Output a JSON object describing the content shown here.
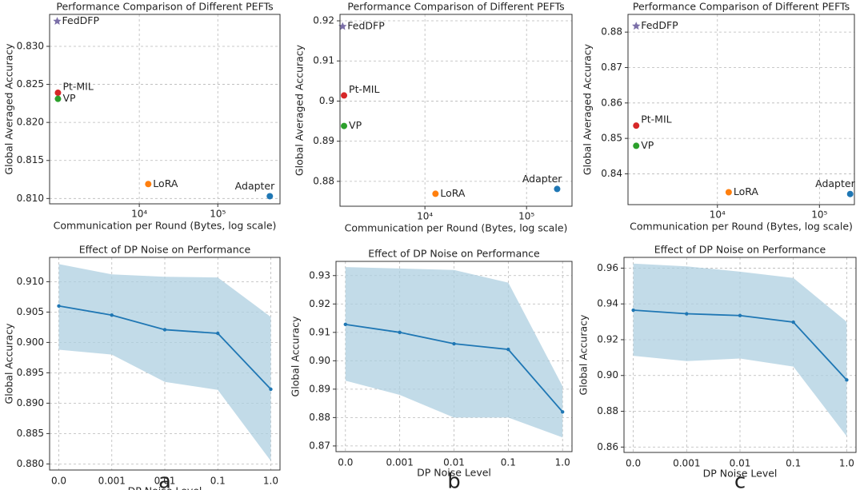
{
  "chart_data": [
    {
      "type": "scatter",
      "title": "Performance Comparison of Different PEFTs",
      "xlabel": "Communication per Round (Bytes, log scale)",
      "ylabel": "Global Averaged Accuracy",
      "categories": [
        "FedDFP",
        "Pt-MIL",
        "VP",
        "LoRA",
        "Adapter"
      ],
      "x": [
        900,
        920,
        920,
        13000,
        460000
      ],
      "values": [
        0.8333,
        0.8239,
        0.8231,
        0.8119,
        0.8103
      ],
      "colors": [
        "#7b6fa8",
        "#d62728",
        "#2ca02c",
        "#ff7f0e",
        "#1f77b4"
      ],
      "markers": [
        "star",
        "circle",
        "circle",
        "circle",
        "circle"
      ],
      "xscale": "log",
      "xlim": [
        720,
        620000
      ],
      "xticks": [
        {
          "value": 10000,
          "label": "10⁴"
        },
        {
          "value": 100000,
          "label": "10⁵"
        }
      ],
      "ylim": [
        0.8093,
        0.8342
      ],
      "yticks": [
        {
          "value": 0.81,
          "label": "0.810"
        },
        0.815,
        {
          "value": 0.82,
          "label": "0.820"
        },
        0.825,
        {
          "value": 0.83,
          "label": "0.830"
        }
      ],
      "grid": true
    },
    {
      "type": "scatter",
      "title": "Performance Comparison of Different PEFTs",
      "xlabel": "Communication per Round (Bytes, log scale)",
      "ylabel": "Global Averaged Accuracy",
      "categories": [
        "FedDFP",
        "Pt-MIL",
        "VP",
        "LoRA",
        "Adapter"
      ],
      "x": [
        1550,
        1600,
        1600,
        12700,
        200000
      ],
      "values": [
        0.9186,
        0.9014,
        0.8938,
        0.8769,
        0.8781
      ],
      "colors": [
        "#7b6fa8",
        "#d62728",
        "#2ca02c",
        "#ff7f0e",
        "#1f77b4"
      ],
      "markers": [
        "star",
        "circle",
        "circle",
        "circle",
        "circle"
      ],
      "xscale": "log",
      "xlim": [
        1460,
        280000
      ],
      "xticks": [
        {
          "value": 10000,
          "label": "10⁴"
        },
        {
          "value": 100000,
          "label": "10⁵"
        }
      ],
      "ylim": [
        0.8738,
        0.9216
      ],
      "yticks": [
        0.88,
        0.89,
        0.9,
        0.91,
        0.92
      ],
      "grid": true
    },
    {
      "type": "scatter",
      "title": "Performance Comparison of Different PEFTs",
      "xlabel": "Communication per Round (Bytes, log scale)",
      "ylabel": "Global Averaged Accuracy",
      "categories": [
        "FedDFP",
        "Pt-MIL",
        "VP",
        "LoRA",
        "Adapter"
      ],
      "x": [
        1600,
        1600,
        1600,
        12900,
        200000
      ],
      "values": [
        0.8817,
        0.8536,
        0.8479,
        0.8348,
        0.8343
      ],
      "colors": [
        "#7b6fa8",
        "#d62728",
        "#2ca02c",
        "#ff7f0e",
        "#1f77b4"
      ],
      "markers": [
        "star",
        "circle",
        "circle",
        "circle",
        "circle"
      ],
      "xscale": "log",
      "xlim": [
        1330,
        220000
      ],
      "xticks": [
        {
          "value": 10000,
          "label": "10⁴"
        },
        {
          "value": 100000,
          "label": "10⁵"
        }
      ],
      "ylim": [
        0.8313,
        0.885
      ],
      "yticks": [
        0.84,
        0.85,
        0.86,
        0.87,
        0.88
      ],
      "grid": true
    },
    {
      "type": "line",
      "title": "Effect of DP Noise on Performance",
      "xlabel": "DP Noise Level",
      "ylabel": "Global Accuracy",
      "panel_label": "a",
      "categories": [
        "0.0",
        "0.001",
        "0.01",
        "0.1",
        "1.0"
      ],
      "series": [
        {
          "color": "#1f77b4",
          "values": [
            0.906,
            0.9045,
            0.9021,
            0.9015,
            0.8923
          ],
          "band_color": "#aecfe0",
          "upper": [
            0.9129,
            0.9112,
            0.9108,
            0.9107,
            0.9042
          ],
          "lower": [
            0.8988,
            0.898,
            0.8935,
            0.8922,
            0.8805
          ]
        }
      ],
      "ylim": [
        0.879,
        0.914
      ],
      "yticks": [
        {
          "value": 0.88,
          "label": "0.880"
        },
        0.885,
        {
          "value": 0.89,
          "label": "0.890"
        },
        0.895,
        {
          "value": 0.9,
          "label": "0.900"
        },
        0.905,
        {
          "value": 0.91,
          "label": "0.910"
        }
      ],
      "grid": true
    },
    {
      "type": "line",
      "title": "Effect of DP Noise on Performance",
      "xlabel": "DP Noise Level",
      "ylabel": "Global Accuracy",
      "panel_label": "b",
      "categories": [
        "0.0",
        "0.001",
        "0.01",
        "0.1",
        "1.0"
      ],
      "series": [
        {
          "color": "#1f77b4",
          "values": [
            0.9128,
            0.91,
            0.906,
            0.904,
            0.882
          ],
          "band_color": "#aecfe0",
          "upper": [
            0.933,
            0.9325,
            0.932,
            0.9275,
            0.891
          ],
          "lower": [
            0.893,
            0.888,
            0.88,
            0.88,
            0.873
          ]
        }
      ],
      "ylim": [
        0.868,
        0.935
      ],
      "yticks": [
        0.87,
        0.88,
        0.89,
        {
          "value": 0.9,
          "label": "0.90"
        },
        0.91,
        0.92,
        0.93
      ],
      "grid": true
    },
    {
      "type": "line",
      "title": "Effect of DP Noise on Performance",
      "xlabel": "DP Noise Level",
      "ylabel": "Global Accuracy",
      "panel_label": "c",
      "categories": [
        "0.0",
        "0.001",
        "0.01",
        "0.1",
        "1.0"
      ],
      "series": [
        {
          "color": "#1f77b4",
          "values": [
            0.9365,
            0.9345,
            0.9335,
            0.9298,
            0.8975
          ],
          "band_color": "#aecfe0",
          "upper": [
            0.9625,
            0.961,
            0.958,
            0.9545,
            0.93
          ],
          "lower": [
            0.911,
            0.908,
            0.9095,
            0.905,
            0.866
          ]
        }
      ],
      "ylim": [
        0.857,
        0.966
      ],
      "yticks": [
        0.86,
        0.88,
        {
          "value": 0.9,
          "label": "0.90"
        },
        0.92,
        0.94,
        0.96
      ],
      "grid": true
    }
  ]
}
